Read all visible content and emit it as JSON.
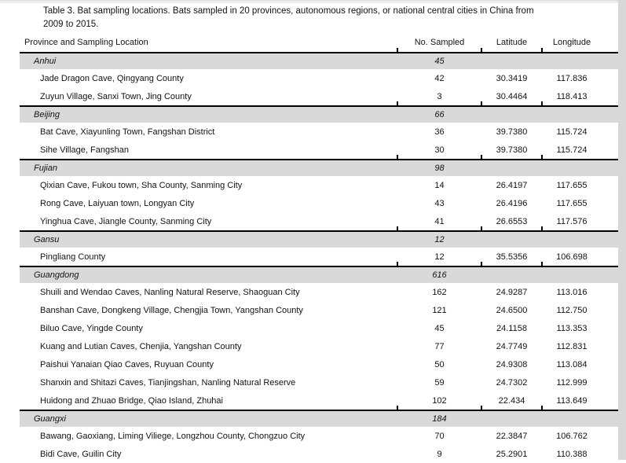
{
  "title": {
    "line1": "Table 3. Bat sampling locations. Bats sampled in 20 provinces, autonomous regions, or national central cities in China from",
    "line2": "2009 to 2015."
  },
  "table": {
    "columns": [
      "Province and Sampling Location",
      "No. Sampled",
      "Latitude",
      "Longitude"
    ],
    "sections": [
      {
        "province": "Anhui",
        "total": "45",
        "rows": [
          {
            "location": "Jade Dragon Cave, Qingyang County",
            "sampled": "42",
            "lat": "30.3419",
            "lon": "117.836"
          },
          {
            "location": "Zuyun Village, Sanxi Town, Jing County",
            "sampled": "3",
            "lat": "30.4464",
            "lon": "118.413"
          }
        ]
      },
      {
        "province": "Beijing",
        "total": "66",
        "rows": [
          {
            "location": "Bat Cave, Xiayunling Town, Fangshan District",
            "sampled": "36",
            "lat": "39.7380",
            "lon": "115.724"
          },
          {
            "location": "Sihe Village, Fangshan",
            "sampled": "30",
            "lat": "39.7380",
            "lon": "115.724"
          }
        ]
      },
      {
        "province": "Fujian",
        "total": "98",
        "rows": [
          {
            "location": "Qixian Cave, Fukou town, Sha County, Sanming City",
            "sampled": "14",
            "lat": "26.4197",
            "lon": "117.655"
          },
          {
            "location": "Rong Cave, Laiyuan town, Longyan City",
            "sampled": "43",
            "lat": "26.4196",
            "lon": "117.655"
          },
          {
            "location": "Yinghua Cave, Jiangle County, Sanming City",
            "sampled": "41",
            "lat": "26.6553",
            "lon": "117.576"
          }
        ]
      },
      {
        "province": "Gansu",
        "total": "12",
        "rows": [
          {
            "location": "Pingliang County",
            "sampled": "12",
            "lat": "35.5356",
            "lon": "106.698"
          }
        ]
      },
      {
        "province": "Guangdong",
        "total": "616",
        "rows": [
          {
            "location": "Shuili and Wendao Caves, Nanling Natural Reserve, Shaoguan City",
            "sampled": "162",
            "lat": "24.9287",
            "lon": "113.016"
          },
          {
            "location": "Banshan Cave, Dongkeng Village, Chengjia Town, Yangshan County",
            "sampled": "121",
            "lat": "24.6500",
            "lon": "112.750"
          },
          {
            "location": "Biluo Cave, Yingde County",
            "sampled": "45",
            "lat": "24.1158",
            "lon": "113.353"
          },
          {
            "location": "Kuang and Lutian Caves, Chenjia, Yangshan County",
            "sampled": "77",
            "lat": "24.7749",
            "lon": "112.831"
          },
          {
            "location": "Paishui Yanaian Qiao Caves, Ruyuan County",
            "sampled": "50",
            "lat": "24.9308",
            "lon": "113.084"
          },
          {
            "location": "Shanxin and Shitazi Caves, Tianjingshan, Nanling Natural Reserve",
            "sampled": "59",
            "lat": "24.7302",
            "lon": "112.999"
          },
          {
            "location": "Huidong and Zhuao Bridge, Qiao Island, Zhuhai",
            "sampled": "102",
            "lat": "22.434",
            "lon": "113.649"
          }
        ]
      },
      {
        "province": "Guangxi",
        "total": "184",
        "rows": [
          {
            "location": "Bawang, Gaoxiang, Liming Viliege, Longzhou County, Chongzuo City",
            "sampled": "70",
            "lat": "22.3847",
            "lon": "106.762"
          },
          {
            "location": "Bidi Cave, Guilin City",
            "sampled": "9",
            "lat": "25.2901",
            "lon": "110.388"
          }
        ]
      }
    ]
  },
  "colors": {
    "section_band": "#d9d9d9",
    "border": "#000000",
    "text": "#121212",
    "app_strip": "#d8d8d8"
  }
}
